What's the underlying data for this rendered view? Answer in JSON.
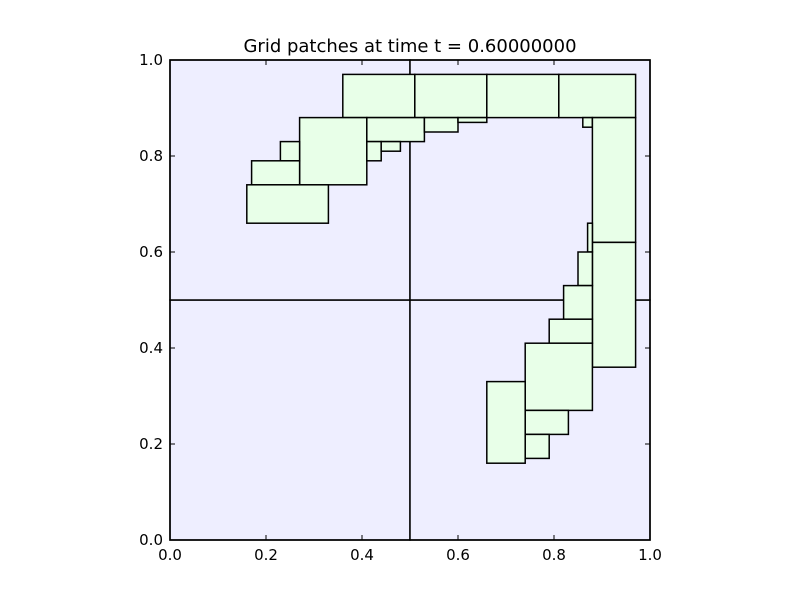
{
  "chart_data": {
    "type": "rectangles",
    "title": "Grid patches at time t =      0.60000000",
    "xlim": [
      0.0,
      1.0
    ],
    "ylim": [
      0.0,
      1.0
    ],
    "x_ticks": [
      "0.0",
      "0.2",
      "0.4",
      "0.6",
      "0.8",
      "1.0"
    ],
    "y_ticks": [
      "0.0",
      "0.2",
      "0.4",
      "0.6",
      "0.8",
      "1.0"
    ],
    "grid": false,
    "level1": {
      "patches": [
        {
          "x": [
            0.0,
            0.5
          ],
          "y": [
            0.0,
            0.5
          ]
        },
        {
          "x": [
            0.5,
            1.0
          ],
          "y": [
            0.0,
            0.5
          ]
        },
        {
          "x": [
            0.0,
            0.5
          ],
          "y": [
            0.5,
            1.0
          ]
        },
        {
          "x": [
            0.5,
            1.0
          ],
          "y": [
            0.5,
            1.0
          ]
        }
      ]
    },
    "level2": {
      "patches": [
        {
          "x": [
            0.36,
            0.51
          ],
          "y": [
            0.88,
            0.97
          ]
        },
        {
          "x": [
            0.51,
            0.66
          ],
          "y": [
            0.88,
            0.97
          ]
        },
        {
          "x": [
            0.66,
            0.81
          ],
          "y": [
            0.88,
            0.97
          ]
        },
        {
          "x": [
            0.81,
            0.97
          ],
          "y": [
            0.88,
            0.97
          ]
        },
        {
          "x": [
            0.27,
            0.41
          ],
          "y": [
            0.74,
            0.88
          ]
        },
        {
          "x": [
            0.41,
            0.53
          ],
          "y": [
            0.83,
            0.88
          ]
        },
        {
          "x": [
            0.53,
            0.6
          ],
          "y": [
            0.85,
            0.88
          ]
        },
        {
          "x": [
            0.6,
            0.66
          ],
          "y": [
            0.87,
            0.88
          ]
        },
        {
          "x": [
            0.41,
            0.44
          ],
          "y": [
            0.79,
            0.83
          ]
        },
        {
          "x": [
            0.44,
            0.48
          ],
          "y": [
            0.81,
            0.83
          ]
        },
        {
          "x": [
            0.23,
            0.27
          ],
          "y": [
            0.79,
            0.83
          ]
        },
        {
          "x": [
            0.17,
            0.27
          ],
          "y": [
            0.74,
            0.79
          ]
        },
        {
          "x": [
            0.16,
            0.33
          ],
          "y": [
            0.66,
            0.74
          ]
        },
        {
          "x": [
            0.86,
            0.88
          ],
          "y": [
            0.86,
            0.88
          ]
        },
        {
          "x": [
            0.88,
            0.97
          ],
          "y": [
            0.62,
            0.88
          ]
        },
        {
          "x": [
            0.88,
            0.97
          ],
          "y": [
            0.36,
            0.62
          ]
        },
        {
          "x": [
            0.87,
            0.88
          ],
          "y": [
            0.6,
            0.66
          ]
        },
        {
          "x": [
            0.85,
            0.88
          ],
          "y": [
            0.53,
            0.6
          ]
        },
        {
          "x": [
            0.82,
            0.88
          ],
          "y": [
            0.46,
            0.53
          ]
        },
        {
          "x": [
            0.79,
            0.88
          ],
          "y": [
            0.41,
            0.46
          ]
        },
        {
          "x": [
            0.74,
            0.88
          ],
          "y": [
            0.27,
            0.41
          ]
        },
        {
          "x": [
            0.74,
            0.83
          ],
          "y": [
            0.22,
            0.27
          ]
        },
        {
          "x": [
            0.74,
            0.79
          ],
          "y": [
            0.17,
            0.22
          ]
        },
        {
          "x": [
            0.66,
            0.74
          ],
          "y": [
            0.16,
            0.33
          ]
        }
      ]
    },
    "colors": {
      "level1_fill": "#eeeeff",
      "level2_fill": "#e8ffe8",
      "edge": "#000000"
    }
  }
}
